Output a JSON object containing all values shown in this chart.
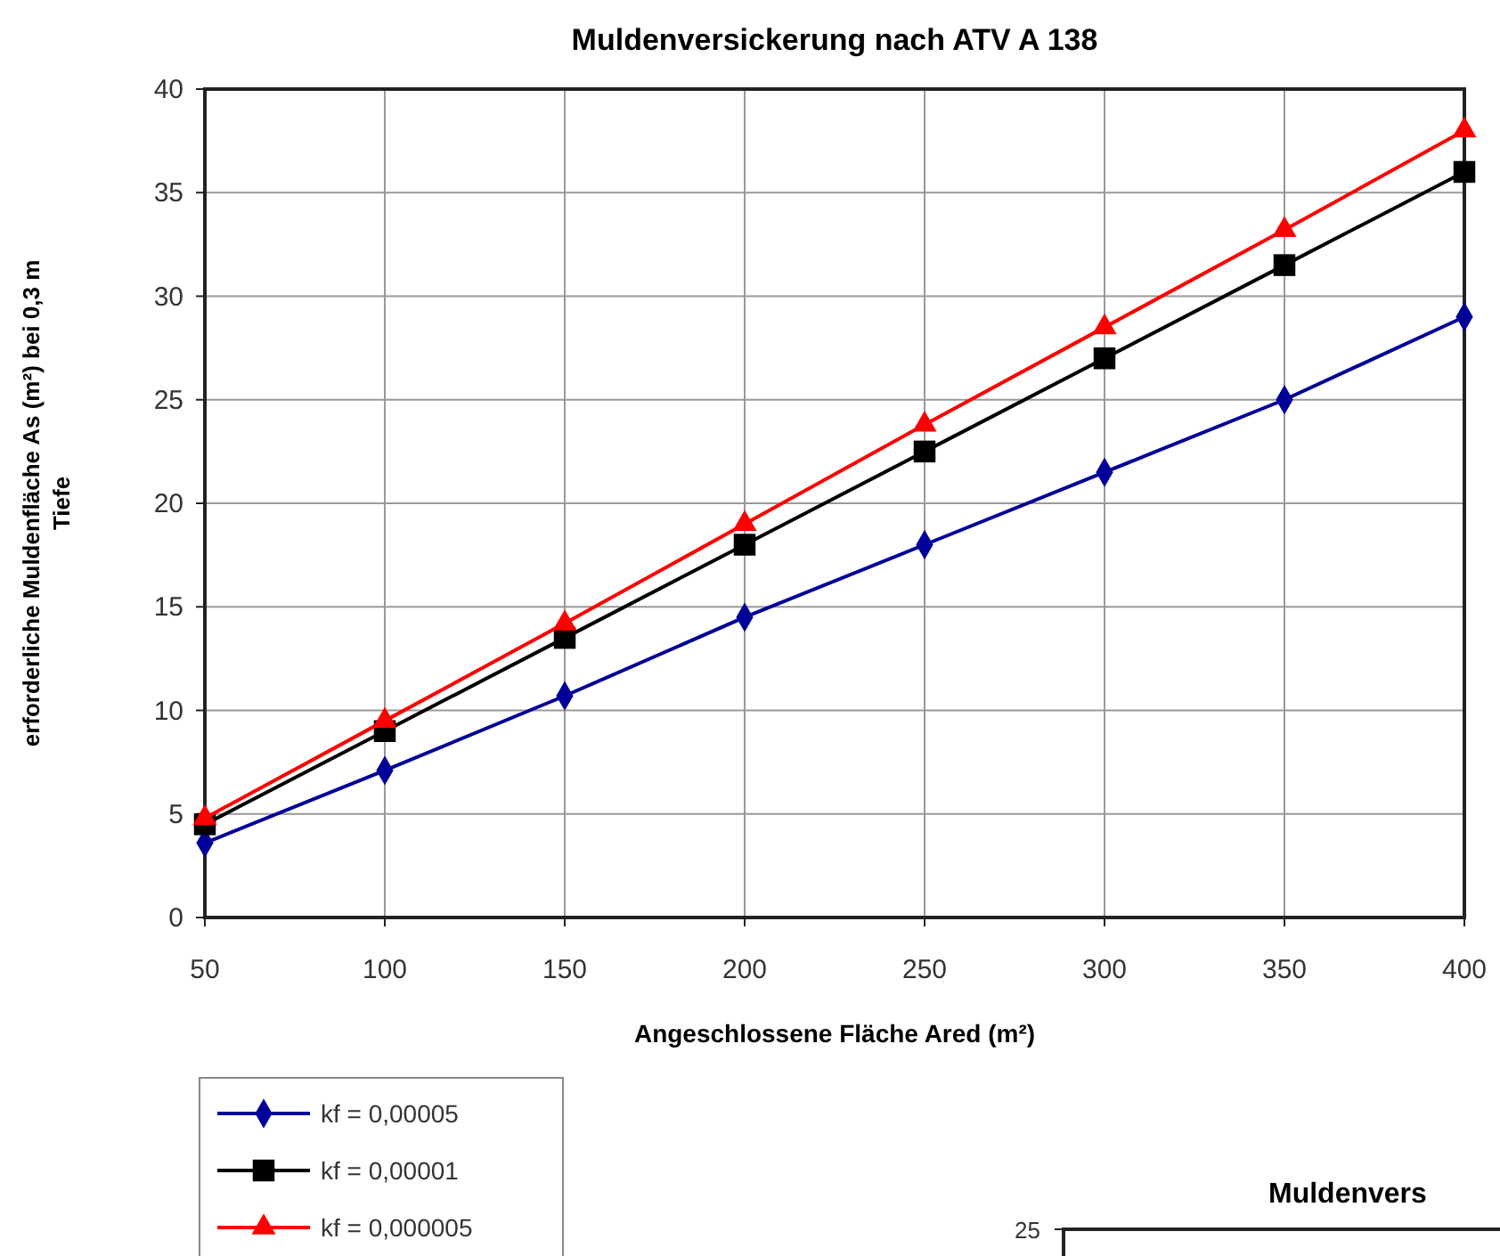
{
  "chart_data": [
    {
      "type": "line",
      "title": "Muldenversickerung nach ATV A 138",
      "xlabel": "Angeschlossene Fläche Ared (m²)",
      "ylabel": "erforderliche Muldenfläche As (m²) bei 0,3 m\nTiefe",
      "x": [
        50,
        100,
        150,
        200,
        250,
        300,
        350,
        400
      ],
      "xlim": [
        50,
        400
      ],
      "xticks": [
        50,
        100,
        150,
        200,
        250,
        300,
        350,
        400
      ],
      "ylim": [
        0,
        40
      ],
      "yticks": [
        0,
        5,
        10,
        15,
        20,
        25,
        30,
        35,
        40
      ],
      "grid": true,
      "legend": "bottom left",
      "line_style": "solid",
      "series": [
        {
          "name": "kf = 0,00005",
          "color": "#000099",
          "marker": "diamond",
          "values": [
            3.6,
            7.1,
            10.7,
            14.5,
            18,
            21.5,
            25,
            29
          ]
        },
        {
          "name": "kf = 0,00001",
          "color": "#000000",
          "marker": "square",
          "values": [
            4.5,
            9,
            13.5,
            18,
            22.5,
            27,
            31.5,
            36
          ]
        },
        {
          "name": "kf = 0,000005",
          "color": "#ff0000",
          "marker": "triangle",
          "values": [
            4.8,
            9.5,
            14.2,
            19,
            23.8,
            28.5,
            33.2,
            38
          ]
        }
      ]
    },
    {
      "type": "other",
      "title": "Muldenvers",
      "annotations": [
        "25"
      ]
    }
  ]
}
